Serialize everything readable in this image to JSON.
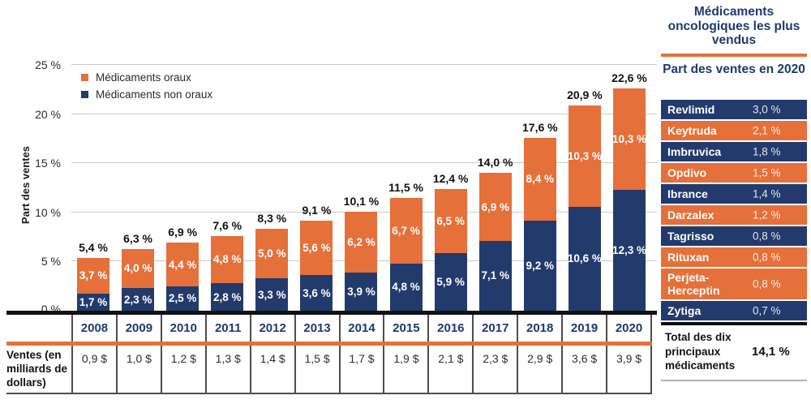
{
  "colors": {
    "orange": "#E5703A",
    "navy": "#233A6C",
    "navy_text": "#1E3A6D",
    "gridline": "#C9C9CC",
    "table_border": "#4D4D4D"
  },
  "chart_data": {
    "type": "bar",
    "stacked": true,
    "ylabel": "Part des ventes",
    "ylim": [
      0,
      25
    ],
    "yticks": [
      0,
      5,
      10,
      15,
      20,
      25
    ],
    "ytick_labels": [
      "0 %",
      "5 %",
      "10 %",
      "15 %",
      "20 %",
      "25 %"
    ],
    "categories": [
      "2008",
      "2009",
      "2010",
      "2011",
      "2012",
      "2013",
      "2014",
      "2015",
      "2016",
      "2017",
      "2018",
      "2019",
      "2020"
    ],
    "series": [
      {
        "name": "Médicaments oraux",
        "color": "#E5703A",
        "values": [
          3.7,
          4.0,
          4.4,
          4.8,
          5.0,
          5.6,
          6.2,
          6.7,
          6.5,
          6.9,
          8.4,
          10.3,
          10.3
        ],
        "labels": [
          "3,7 %",
          "4,0 %",
          "4,4 %",
          "4,8 %",
          "5,0 %",
          "5,6 %",
          "6,2 %",
          "6,7 %",
          "6,5 %",
          "6,9 %",
          "8,4 %",
          "10,3 %",
          "10,3 %"
        ]
      },
      {
        "name": "Médicaments non oraux",
        "color": "#233A6C",
        "values": [
          1.7,
          2.3,
          2.5,
          2.8,
          3.3,
          3.6,
          3.9,
          4.8,
          5.9,
          7.1,
          9.2,
          10.6,
          12.3
        ],
        "labels": [
          "1,7 %",
          "2,3 %",
          "2,5 %",
          "2,8 %",
          "3,3 %",
          "3,6 %",
          "3,9 %",
          "4,8 %",
          "5,9 %",
          "7,1 %",
          "9,2 %",
          "10,6 %",
          "12,3 %"
        ]
      }
    ],
    "totals": [
      5.4,
      6.3,
      6.9,
      7.6,
      8.3,
      9.1,
      10.1,
      11.5,
      12.4,
      14.0,
      17.6,
      20.9,
      22.6
    ],
    "total_labels": [
      "5,4 %",
      "6,3 %",
      "6,9 %",
      "7,6 %",
      "8,3 %",
      "9,1 %",
      "10,1 %",
      "11,5 %",
      "12,4 %",
      "14,0 %",
      "17,6 %",
      "20,9 %",
      "22,6 %"
    ],
    "legend_position": "top-left"
  },
  "sales_table": {
    "header": "Ventes (en milliards de dollars)",
    "values": [
      "0,9 $",
      "1,0 $",
      "1,2 $",
      "1,3 $",
      "1,4 $",
      "1,5 $",
      "1,7 $",
      "1,9 $",
      "2,1 $",
      "2,3 $",
      "2,9 $",
      "3,6 $",
      "3,9 $"
    ]
  },
  "side_panel": {
    "title": "Médicaments oncologiques les plus vendus",
    "subtitle": "Part des ventes en 2020",
    "drugs": [
      {
        "name": "Revlimid",
        "share": "3,0 %",
        "color": "navy"
      },
      {
        "name": "Keytruda",
        "share": "2,1 %",
        "color": "orange"
      },
      {
        "name": "Imbruvica",
        "share": "1,8 %",
        "color": "navy"
      },
      {
        "name": "Opdivo",
        "share": "1,5 %",
        "color": "orange"
      },
      {
        "name": "Ibrance",
        "share": "1,4 %",
        "color": "navy"
      },
      {
        "name": "Darzalex",
        "share": "1,2 %",
        "color": "orange"
      },
      {
        "name": "Tagrisso",
        "share": "0,8 %",
        "color": "navy"
      },
      {
        "name": "Rituxan",
        "share": "0,8 %",
        "color": "orange"
      },
      {
        "name": "Perjeta-Herceptin",
        "share": "0,8 %",
        "color": "orange"
      },
      {
        "name": "Zytiga",
        "share": "0,7 %",
        "color": "navy"
      }
    ],
    "total_label": "Total des dix principaux médicaments",
    "total_value": "14,1 %"
  }
}
